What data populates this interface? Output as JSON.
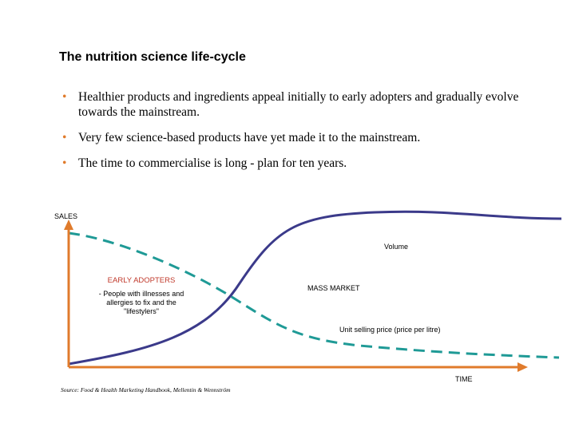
{
  "title": "The nutrition science life-cycle",
  "bullets": [
    "Healthier products and ingredients appeal initially to early adopters and gradually evolve towards the mainstream.",
    "Very few science-based products have yet made it to the mainstream.",
    "The time to commercialise is long - plan for ten years."
  ],
  "bullet_symbol": "•",
  "diagram": {
    "y_axis_label": "SALES",
    "x_axis_label": "TIME",
    "volume_label": "Volume",
    "price_label": "Unit selling price (price per litre)",
    "mass_market_label": "MASS MARKET",
    "early_adopters_title": "EARLY ADOPTERS",
    "early_adopters_desc": "- People with illnesses and allergies to fix and the \"lifestylers\""
  },
  "source": "Source: Food & Health Marketing Handbook, Mellentin & Wennström",
  "colors": {
    "axis": "#e07b2c",
    "volume_curve": "#3b3a8a",
    "price_curve": "#1f9a96",
    "bullet": "#e07b2c",
    "early_adopters_title": "#c0392b"
  }
}
